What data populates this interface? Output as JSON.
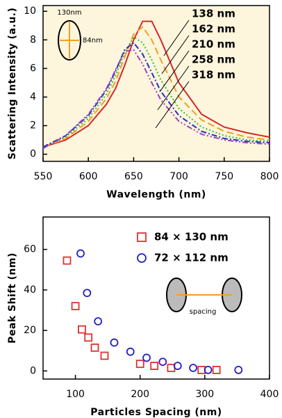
{
  "chart_data": [
    {
      "type": "line",
      "x_label": "Wavelength (nm)",
      "y_label": "Scattering Intensity (a.u.)",
      "x": [
        550,
        575,
        600,
        620,
        630,
        640,
        650,
        660,
        670,
        680,
        700,
        725,
        750,
        775,
        800
      ],
      "xlim": [
        550,
        800
      ],
      "ylim": [
        -0.5,
        10.4
      ],
      "xticks": [
        550,
        600,
        650,
        700,
        750,
        800
      ],
      "yticks": [
        0,
        2,
        4,
        6,
        8,
        10
      ],
      "background": "#fdf5dc",
      "series": [
        {
          "name": "138 nm",
          "color": "#d62828",
          "linestyle": "solid",
          "values": [
            0.5,
            1.0,
            2.0,
            3.5,
            4.6,
            6.2,
            8.0,
            9.3,
            9.3,
            8.0,
            5.0,
            2.8,
            1.9,
            1.5,
            1.2
          ]
        },
        {
          "name": "162 nm",
          "color": "#f0a020",
          "linestyle": "dashed",
          "values": [
            0.5,
            1.1,
            2.3,
            3.9,
            5.1,
            6.8,
            8.4,
            8.9,
            8.0,
            6.6,
            4.0,
            2.4,
            1.6,
            1.2,
            1.0
          ]
        },
        {
          "name": "210 nm",
          "color": "#30c030",
          "linestyle": "dotted",
          "values": [
            0.5,
            1.2,
            2.5,
            4.2,
            5.5,
            7.1,
            8.2,
            7.8,
            6.6,
            5.2,
            3.2,
            1.9,
            1.3,
            1.0,
            0.9
          ]
        },
        {
          "name": "258 nm",
          "color": "#2030c0",
          "linestyle": "dashdot",
          "values": [
            0.5,
            1.3,
            2.7,
            4.5,
            5.8,
            7.3,
            7.8,
            7.0,
            5.7,
            4.4,
            2.7,
            1.6,
            1.1,
            0.9,
            0.8
          ]
        },
        {
          "name": "318 nm",
          "color": "#a040c0",
          "linestyle": "dashdotdot",
          "values": [
            0.4,
            1.3,
            2.8,
            4.6,
            5.9,
            7.2,
            7.3,
            6.3,
            5.0,
            3.8,
            2.3,
            1.4,
            1.0,
            0.8,
            0.7
          ]
        }
      ],
      "annotations": [
        "130nm",
        "84nm"
      ]
    },
    {
      "type": "scatter",
      "x_label": "Particles Spacing (nm)",
      "y_label": "Peak Shift (nm)",
      "xlim": [
        50,
        400
      ],
      "ylim": [
        -4,
        76
      ],
      "xticks": [
        100,
        200,
        300,
        400
      ],
      "yticks": [
        0,
        20,
        40,
        60
      ],
      "background": "#ffffff",
      "series": [
        {
          "name": "84 × 130 nm",
          "color": "#e03030",
          "marker": "square",
          "x": [
            87,
            100,
            110,
            120,
            130,
            145,
            200,
            222,
            248,
            295,
            318
          ],
          "y": [
            54.5,
            32,
            20.5,
            16.5,
            11.5,
            7.5,
            3.5,
            2.5,
            1.5,
            0.5,
            0.5
          ]
        },
        {
          "name": "72 × 112 nm",
          "color": "#2020c0",
          "marker": "circle",
          "x": [
            108,
            118,
            135,
            160,
            185,
            210,
            235,
            258,
            282,
            305,
            352
          ],
          "y": [
            58,
            38.5,
            24.5,
            14,
            9.5,
            6.5,
            4.5,
            2.5,
            1.5,
            0.5,
            0.5
          ]
        }
      ],
      "annotations": [
        "spacing"
      ]
    }
  ]
}
